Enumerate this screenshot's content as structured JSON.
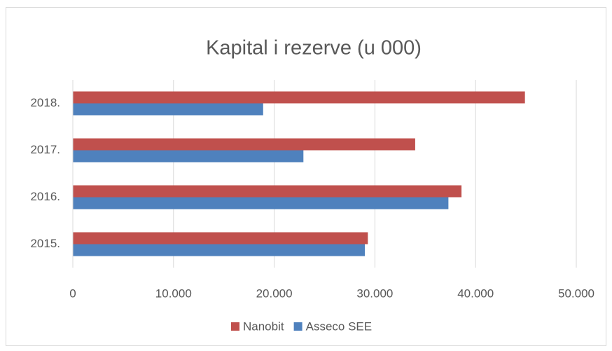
{
  "chart_data": {
    "type": "hbar",
    "title": "Kapital i rezerve (u 000)",
    "categories": [
      "2015.",
      "2016.",
      "2017.",
      "2018."
    ],
    "series": [
      {
        "name": "Nanobit",
        "color": "#c0504d",
        "values": [
          29300,
          38600,
          34000,
          44900
        ]
      },
      {
        "name": "Asseco SEE",
        "color": "#4f81bd",
        "values": [
          29000,
          37300,
          22900,
          18900
        ]
      }
    ],
    "xlim": [
      0,
      50000
    ],
    "xticks": [
      0,
      {
        "value": 10000,
        "label": "10.000"
      },
      {
        "value": 20000,
        "label": "20.000"
      },
      {
        "value": 30000,
        "label": "30.000"
      },
      {
        "value": 40000,
        "label": "40.000"
      },
      {
        "value": 50000,
        "label": "50.000"
      }
    ],
    "grid": true,
    "legend": "bottom"
  }
}
